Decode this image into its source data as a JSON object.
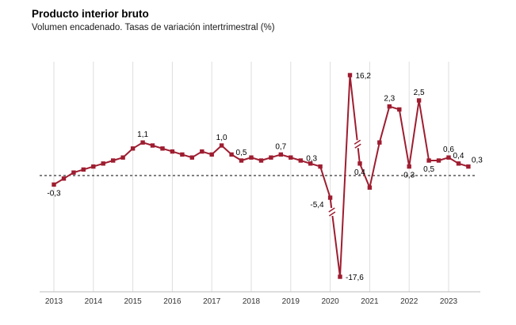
{
  "header": {
    "title": "Producto interior bruto",
    "subtitle": "Volumen encadenado. Tasas de variación intertrimestral (%)"
  },
  "chart_data": {
    "type": "line",
    "title": "Producto interior bruto",
    "subtitle": "Volumen encadenado. Tasas de variación intertrimestral (%)",
    "line_color": "#9e1d30",
    "zero_baseline": "dashed",
    "grid": "vertical-year-gridlines",
    "legend": "none",
    "y_axis_labels": "none (values shown as point labels)",
    "ylim_visual": [
      -18,
      17
    ],
    "x_tick_labels": [
      "2013",
      "2014",
      "2015",
      "2016",
      "2017",
      "2018",
      "2019",
      "2020",
      "2021",
      "2022",
      "2023"
    ],
    "axis_breaks": [
      {
        "from": "2020Q1",
        "to": "2020Q2",
        "t": 0.18
      },
      {
        "from": "2020Q3",
        "to": "2020Q4",
        "t": 0.78
      }
    ],
    "series": [
      {
        "name": "Tasa de variación intertrimestral (%)",
        "points": [
          {
            "period": "2013Q1",
            "value": -0.3,
            "label": "-0,3",
            "label_pos": "below"
          },
          {
            "period": "2013Q2",
            "value": -0.1
          },
          {
            "period": "2013Q3",
            "value": 0.1
          },
          {
            "period": "2013Q4",
            "value": 0.2
          },
          {
            "period": "2014Q1",
            "value": 0.3
          },
          {
            "period": "2014Q2",
            "value": 0.4
          },
          {
            "period": "2014Q3",
            "value": 0.5
          },
          {
            "period": "2014Q4",
            "value": 0.6
          },
          {
            "period": "2015Q1",
            "value": 0.9
          },
          {
            "period": "2015Q2",
            "value": 1.1,
            "label": "1,1",
            "label_pos": "above"
          },
          {
            "period": "2015Q3",
            "value": 1.0
          },
          {
            "period": "2015Q4",
            "value": 0.9
          },
          {
            "period": "2016Q1",
            "value": 0.8
          },
          {
            "period": "2016Q2",
            "value": 0.7
          },
          {
            "period": "2016Q3",
            "value": 0.6
          },
          {
            "period": "2016Q4",
            "value": 0.8
          },
          {
            "period": "2017Q1",
            "value": 0.7
          },
          {
            "period": "2017Q2",
            "value": 1.0,
            "label": "1,0",
            "label_pos": "above"
          },
          {
            "period": "2017Q3",
            "value": 0.7
          },
          {
            "period": "2017Q4",
            "value": 0.5,
            "label": "0,5",
            "label_pos": "above"
          },
          {
            "period": "2018Q1",
            "value": 0.6
          },
          {
            "period": "2018Q2",
            "value": 0.5
          },
          {
            "period": "2018Q3",
            "value": 0.6
          },
          {
            "period": "2018Q4",
            "value": 0.7,
            "label": "0,7",
            "label_pos": "above"
          },
          {
            "period": "2019Q1",
            "value": 0.6
          },
          {
            "period": "2019Q2",
            "value": 0.5
          },
          {
            "period": "2019Q3",
            "value": 0.4
          },
          {
            "period": "2019Q4",
            "value": 0.3,
            "label": "0,3",
            "label_pos": "above-left"
          },
          {
            "period": "2020Q1",
            "value": -5.4,
            "label": "-5,4",
            "label_pos": "below-left"
          },
          {
            "period": "2020Q2",
            "value": -17.6,
            "label": "-17,6",
            "label_pos": "right"
          },
          {
            "period": "2020Q3",
            "value": 16.2,
            "label": "16,2",
            "label_pos": "right"
          },
          {
            "period": "2020Q4",
            "value": 0.4,
            "label": "0,4",
            "label_pos": "below"
          },
          {
            "period": "2021Q1",
            "value": -0.4
          },
          {
            "period": "2021Q2",
            "value": 1.1
          },
          {
            "period": "2021Q3",
            "value": 2.3,
            "label": "2,3",
            "label_pos": "above"
          },
          {
            "period": "2021Q4",
            "value": 2.2
          },
          {
            "period": "2022Q1",
            "value": 0.3,
            "label": "0,3",
            "label_pos": "below"
          },
          {
            "period": "2022Q2",
            "value": 2.5,
            "label": "2,5",
            "label_pos": "above"
          },
          {
            "period": "2022Q3",
            "value": 0.5,
            "label": "0,5",
            "label_pos": "below"
          },
          {
            "period": "2022Q4",
            "value": 0.5
          },
          {
            "period": "2023Q1",
            "value": 0.6,
            "label": "0,6",
            "label_pos": "above"
          },
          {
            "period": "2023Q2",
            "value": 0.4,
            "label": "0,4",
            "label_pos": "above"
          },
          {
            "period": "2023Q3",
            "value": 0.3,
            "label": "0,3",
            "label_pos": "above-right"
          }
        ]
      }
    ]
  }
}
